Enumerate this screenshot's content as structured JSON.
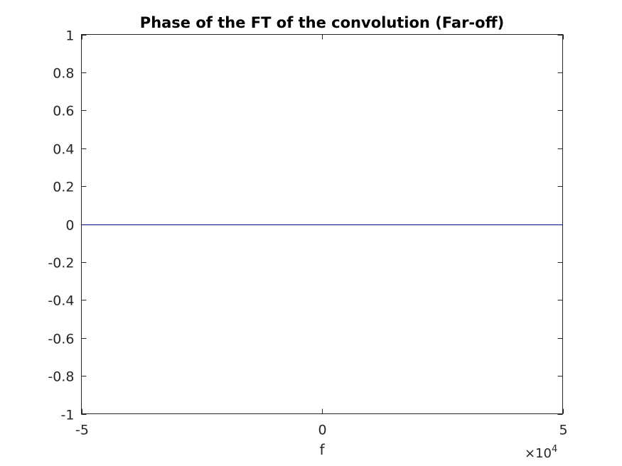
{
  "chart_data": {
    "type": "line",
    "title": "Phase of the FT of the convolution (Far-off)",
    "xlabel": "f",
    "ylabel": "",
    "xlim": [
      -50000,
      50000
    ],
    "ylim": [
      -1,
      1
    ],
    "x_exponent": {
      "multiplier": "×10",
      "power": "4"
    },
    "x_ticks": [
      {
        "value": -50000,
        "label": "-5"
      },
      {
        "value": 0,
        "label": "0"
      },
      {
        "value": 50000,
        "label": "5"
      }
    ],
    "y_ticks": [
      {
        "value": 1,
        "label": "1"
      },
      {
        "value": 0.8,
        "label": "0.8"
      },
      {
        "value": 0.6,
        "label": "0.6"
      },
      {
        "value": 0.4,
        "label": "0.4"
      },
      {
        "value": 0.2,
        "label": "0.2"
      },
      {
        "value": 0,
        "label": "0"
      },
      {
        "value": -0.2,
        "label": "-0.2"
      },
      {
        "value": -0.4,
        "label": "-0.4"
      },
      {
        "value": -0.6,
        "label": "-0.6"
      },
      {
        "value": -0.8,
        "label": "-0.8"
      },
      {
        "value": -1,
        "label": "-1"
      }
    ],
    "grid": false,
    "series": [
      {
        "x": [
          -50000,
          50000
        ],
        "y": [
          0,
          0
        ],
        "color": "#00007f"
      }
    ]
  }
}
